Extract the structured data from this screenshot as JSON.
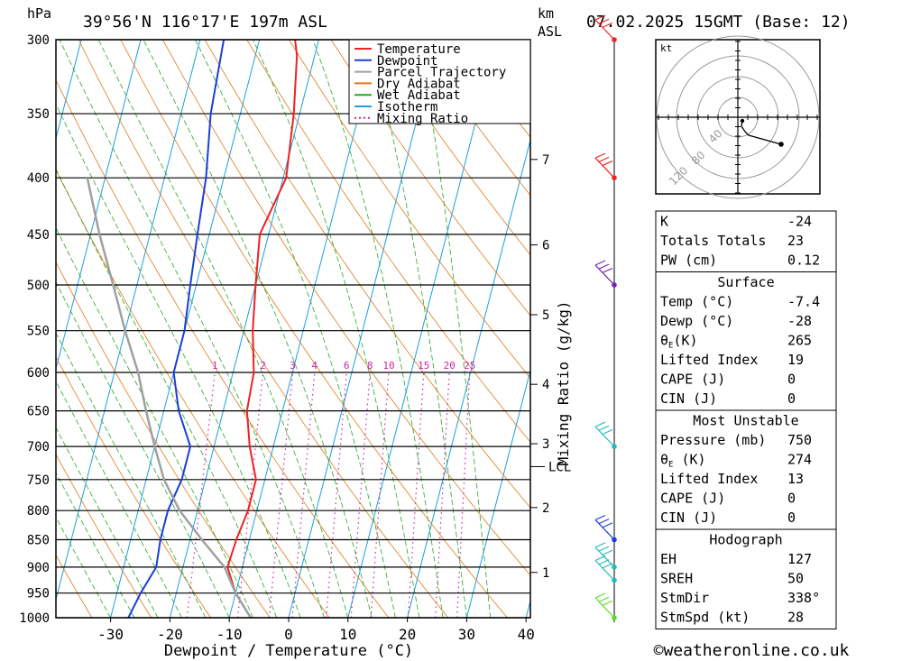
{
  "header": {
    "hpa_label": "hPa",
    "location": "39°56'N  116°17'E  197m  ASL",
    "km_label": "km",
    "asl_label": "ASL",
    "datetime": "07.02.2025  15GMT  (Base: 12)"
  },
  "chart_data": {
    "type": "line",
    "xlabel": "Dewpoint / Temperature (°C)",
    "x_ticks": [
      -30,
      -20,
      -10,
      0,
      10,
      20,
      30,
      40
    ],
    "pressure_levels": [
      300,
      350,
      400,
      450,
      500,
      550,
      600,
      650,
      700,
      750,
      800,
      850,
      900,
      950,
      1000
    ],
    "km_ticks": [
      {
        "label": "7",
        "p": 385
      },
      {
        "label": "6",
        "p": 460
      },
      {
        "label": "5",
        "p": 532
      },
      {
        "label": "4",
        "p": 615
      },
      {
        "label": "3",
        "p": 696
      },
      {
        "label": "2",
        "p": 795
      },
      {
        "label": "1",
        "p": 910
      }
    ],
    "lcl": {
      "label": "LCL",
      "p": 730
    },
    "mixing_axis_label": "Mixing Ratio (g/kg)",
    "mixing_ratio_labels": [
      "1",
      "2",
      "3",
      "4",
      "6",
      "8",
      "10",
      "15",
      "20",
      "25"
    ],
    "legend": {
      "position": "top-right",
      "items": [
        {
          "name": "Temperature",
          "color": "#ee2222",
          "style": "solid"
        },
        {
          "name": "Dewpoint",
          "color": "#1a3fd6",
          "style": "solid"
        },
        {
          "name": "Parcel Trajectory",
          "color": "#a0a0a0",
          "style": "solid"
        },
        {
          "name": "Dry Adiabat",
          "color": "#e07a1a",
          "style": "solid"
        },
        {
          "name": "Wet Adiabat",
          "color": "#22aa22",
          "style": "solid"
        },
        {
          "name": "Isotherm",
          "color": "#1aa0e0",
          "style": "solid"
        },
        {
          "name": "Mixing Ratio",
          "color": "#cc22aa",
          "style": "dotted"
        }
      ]
    },
    "series": [
      {
        "name": "Temperature",
        "color": "#ee2222",
        "points": [
          [
            -6.4,
            1000
          ],
          [
            -10,
            950
          ],
          [
            -12.5,
            900
          ],
          [
            -12.2,
            850
          ],
          [
            -11.5,
            800
          ],
          [
            -11.5,
            750
          ],
          [
            -14,
            700
          ],
          [
            -16,
            650
          ],
          [
            -16.5,
            600
          ],
          [
            -18.5,
            550
          ],
          [
            -20,
            500
          ],
          [
            -21.5,
            450
          ],
          [
            -19.5,
            400
          ],
          [
            -21,
            350
          ],
          [
            -23,
            310
          ],
          [
            -24,
            300
          ]
        ]
      },
      {
        "name": "Dewpoint",
        "color": "#1a3fd6",
        "points": [
          [
            -27,
            1000
          ],
          [
            -26,
            950
          ],
          [
            -24.5,
            900
          ],
          [
            -25,
            850
          ],
          [
            -25,
            800
          ],
          [
            -24,
            750
          ],
          [
            -24,
            700
          ],
          [
            -27.5,
            650
          ],
          [
            -30,
            600
          ],
          [
            -30,
            550
          ],
          [
            -31,
            500
          ],
          [
            -32,
            450
          ],
          [
            -33,
            400
          ],
          [
            -35,
            350
          ],
          [
            -36,
            300
          ]
        ]
      },
      {
        "name": "Parcel Trajectory",
        "color": "#a0a0a0",
        "points": [
          [
            -6.4,
            1000
          ],
          [
            -10,
            950
          ],
          [
            -13,
            900
          ],
          [
            -18,
            850
          ],
          [
            -23,
            800
          ],
          [
            -27,
            750
          ],
          [
            -30,
            700
          ],
          [
            -33,
            650
          ],
          [
            -36,
            600
          ],
          [
            -40,
            550
          ],
          [
            -44,
            500
          ],
          [
            -48.5,
            450
          ],
          [
            -53,
            400
          ]
        ]
      }
    ],
    "winds": [
      {
        "p": 300,
        "color": "#ee2222"
      },
      {
        "p": 400,
        "color": "#ee2222"
      },
      {
        "p": 500,
        "color": "#7722bb"
      },
      {
        "p": 700,
        "color": "#22bbbb"
      },
      {
        "p": 850,
        "color": "#1a3fd6"
      },
      {
        "p": 900,
        "color": "#22bbbb"
      },
      {
        "p": 925,
        "color": "#22bbbb"
      },
      {
        "p": 1000,
        "color": "#55dd22"
      }
    ]
  },
  "hodograph": {
    "unit": "kt",
    "ring_labels": [
      "40",
      "80",
      "120"
    ]
  },
  "indices": {
    "general": [
      {
        "label": "K",
        "value": "-24"
      },
      {
        "label": "Totals Totals",
        "value": "23"
      },
      {
        "label": "PW (cm)",
        "value": "0.12"
      }
    ],
    "surface_title": "Surface",
    "surface": [
      {
        "label": "Temp (°C)",
        "value": "-7.4"
      },
      {
        "label": "Dewp (°C)",
        "value": "-28"
      },
      {
        "label": "θE(K)",
        "value": "265"
      },
      {
        "label": "Lifted Index",
        "value": "19"
      },
      {
        "label": "CAPE (J)",
        "value": "0"
      },
      {
        "label": "CIN (J)",
        "value": "0"
      }
    ],
    "mu_title": "Most Unstable",
    "most_unstable": [
      {
        "label": "Pressure (mb)",
        "value": "750"
      },
      {
        "label": "θE (K)",
        "value": "274"
      },
      {
        "label": "Lifted Index",
        "value": "13"
      },
      {
        "label": "CAPE (J)",
        "value": "0"
      },
      {
        "label": "CIN (J)",
        "value": "0"
      }
    ],
    "hodo_title": "Hodograph",
    "hodograph": [
      {
        "label": "EH",
        "value": "127"
      },
      {
        "label": "SREH",
        "value": "50"
      },
      {
        "label": "StmDir",
        "value": "338°"
      },
      {
        "label": "StmSpd (kt)",
        "value": "28"
      }
    ]
  },
  "footer": {
    "credit": "©weatheronline.co.uk"
  }
}
